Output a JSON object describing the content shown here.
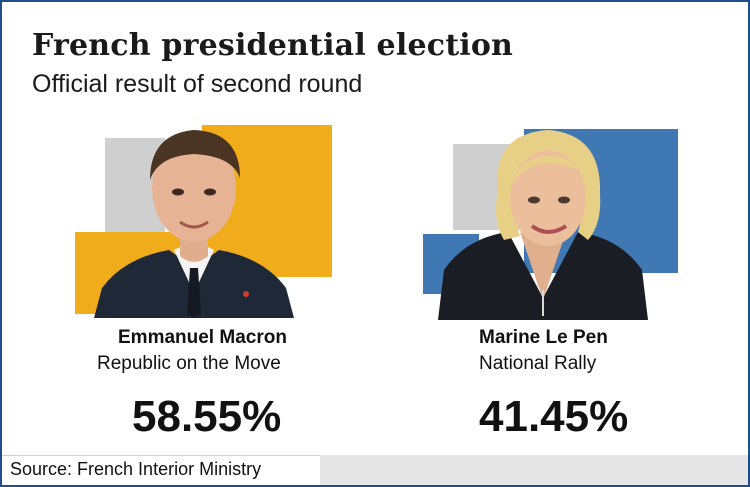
{
  "chart_data": {
    "type": "table",
    "title": "French presidential election",
    "subtitle": "Official result of second round",
    "candidates": [
      {
        "name": "Emmanuel Macron",
        "party": "Republic on the Move",
        "value": 58.55,
        "label": "58.55%",
        "color": "#f0ac1b"
      },
      {
        "name": "Marine Le Pen",
        "party": "National Rally",
        "value": 41.45,
        "label": "41.45%",
        "color": "#3f78b2"
      }
    ]
  },
  "source": "Source: French Interior Ministry",
  "icons": [
    "macron-portrait-icon",
    "le-pen-portrait-icon"
  ]
}
